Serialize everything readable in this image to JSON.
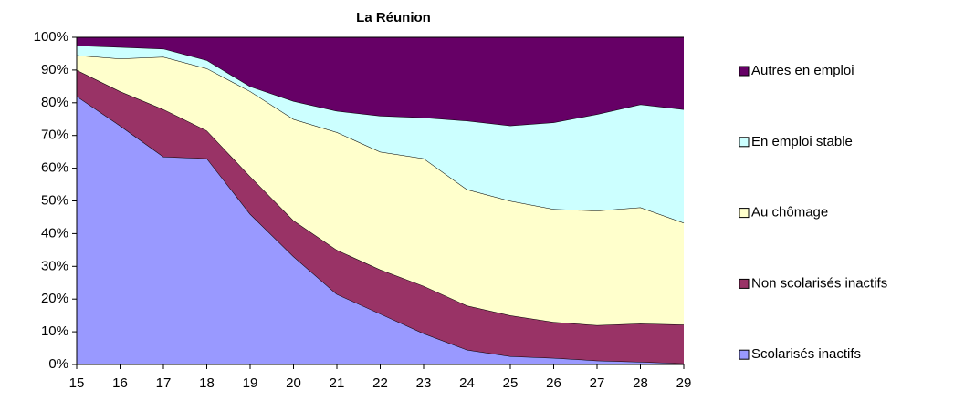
{
  "chart_data": {
    "type": "stacked_area",
    "title": "La Réunion",
    "categories": [
      "15",
      "16",
      "17",
      "18",
      "19",
      "20",
      "21",
      "22",
      "23",
      "24",
      "25",
      "26",
      "27",
      "28",
      "29"
    ],
    "series": [
      {
        "name": "Scolarisés inactifs",
        "color": "#9999ff",
        "values": [
          82,
          73,
          63.5,
          63,
          46,
          33,
          21.5,
          15.5,
          9.5,
          4.5,
          2.5,
          2,
          1.2,
          0.8,
          0.3
        ]
      },
      {
        "name": "Non scolarisés inactifs",
        "color": "#993366",
        "values": [
          8,
          10.5,
          14.5,
          8.5,
          11.5,
          11,
          13.5,
          13.5,
          14.5,
          13.5,
          12.5,
          11,
          10.8,
          11.7,
          11.9
        ]
      },
      {
        "name": "Au chômage",
        "color": "#ffffcc",
        "values": [
          4.5,
          10,
          16,
          19,
          26,
          31,
          36,
          36,
          39,
          35.5,
          35,
          34.5,
          35,
          35.5,
          31.1
        ]
      },
      {
        "name": "En emploi stable",
        "color": "#ccffff",
        "values": [
          3,
          3.5,
          2.5,
          2.5,
          1.5,
          5.5,
          6.5,
          11,
          12.5,
          21,
          23,
          26.5,
          29.5,
          31.5,
          34.7
        ]
      },
      {
        "name": "Autres en emploi",
        "color": "#660066",
        "values": [
          2.5,
          3,
          3.5,
          7,
          15,
          19.5,
          22.5,
          24,
          24.5,
          25.5,
          27,
          26,
          23.5,
          20.5,
          22
        ]
      }
    ],
    "ylim": [
      0,
      100
    ],
    "yticks": [
      {
        "value": 0,
        "label": "0%"
      },
      {
        "value": 10,
        "label": "10%"
      },
      {
        "value": 20,
        "label": "20%"
      },
      {
        "value": 30,
        "label": "30%"
      },
      {
        "value": 40,
        "label": "40%"
      },
      {
        "value": 50,
        "label": "50%"
      },
      {
        "value": 60,
        "label": "60%"
      },
      {
        "value": 70,
        "label": "70%"
      },
      {
        "value": 80,
        "label": "80%"
      },
      {
        "value": 90,
        "label": "90%"
      },
      {
        "value": 100,
        "label": "100%"
      }
    ],
    "grid": false,
    "legend": "right"
  }
}
